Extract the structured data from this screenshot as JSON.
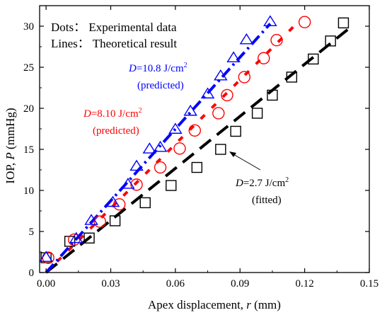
{
  "chart_data": {
    "type": "scatter",
    "xlabel": "Apex displacement, ",
    "xlabel_var": "r",
    "xlabel_unit": " (mm)",
    "ylabel": "IOP, ",
    "ylabel_var": "P",
    "ylabel_unit": " (mmHg)",
    "xlim": [
      -0.003,
      0.15
    ],
    "ylim": [
      0,
      32.5
    ],
    "xticks": [
      0.0,
      0.03,
      0.06,
      0.09,
      0.12,
      0.15
    ],
    "xtick_labels": [
      "0.00",
      "0.03",
      "0.06",
      "0.09",
      "0.12",
      "0.15"
    ],
    "yticks": [
      0,
      5,
      10,
      15,
      20,
      25,
      30
    ],
    "ytick_labels": [
      "0",
      "5",
      "10",
      "15",
      "20",
      "25",
      "30"
    ],
    "notes": [
      "Dots： Experimental data",
      "Lines： Theoretical result"
    ],
    "series": [
      {
        "kind": "experimental",
        "marker": "square",
        "color": "#000000",
        "x": [
          0.0,
          0.011,
          0.02,
          0.032,
          0.046,
          0.058,
          0.07,
          0.081,
          0.088,
          0.098,
          0.105,
          0.114,
          0.124,
          0.132,
          0.138
        ],
        "y": [
          1.8,
          3.8,
          4.2,
          6.3,
          8.5,
          10.6,
          12.8,
          15.0,
          17.2,
          19.4,
          21.6,
          23.8,
          26.0,
          28.2,
          30.4
        ]
      },
      {
        "kind": "experimental",
        "marker": "circle",
        "color": "#ff0000",
        "x": [
          0.001,
          0.013,
          0.025,
          0.034,
          0.042,
          0.053,
          0.062,
          0.069,
          0.08,
          0.084,
          0.092,
          0.101,
          0.107,
          0.12
        ],
        "y": [
          1.8,
          4.0,
          6.2,
          8.3,
          10.7,
          12.8,
          15.1,
          17.3,
          19.4,
          21.6,
          23.8,
          26.1,
          28.3,
          30.5
        ]
      },
      {
        "kind": "experimental",
        "marker": "triangle",
        "color": "#0000ff",
        "x": [
          0.0,
          0.014,
          0.021,
          0.031,
          0.038,
          0.042,
          0.048,
          0.053,
          0.06,
          0.067,
          0.075,
          0.081,
          0.087,
          0.093,
          0.104
        ],
        "y": [
          1.8,
          4.1,
          6.3,
          8.5,
          10.7,
          12.9,
          15.0,
          15.2,
          17.4,
          19.6,
          21.7,
          23.9,
          26.1,
          28.3,
          30.5
        ]
      },
      {
        "kind": "theoretical",
        "dash": "black",
        "color": "#000000",
        "x": [
          0.0,
          0.14
        ],
        "y": [
          0.0,
          29.6
        ]
      },
      {
        "kind": "theoretical",
        "dash": "red",
        "color": "#ff0000",
        "x": [
          0.0,
          0.117
        ],
        "y": [
          0.0,
          30.5
        ]
      },
      {
        "kind": "theoretical",
        "dash": "blue",
        "color": "#0000ff",
        "x": [
          0.0,
          0.104
        ],
        "y": [
          0.0,
          30.3
        ]
      }
    ],
    "annotations": [
      {
        "prefix": "D",
        "text": "=10.8 J/cm",
        "sup": "2",
        "sub": "(predicted)",
        "color": "#0000ff"
      },
      {
        "prefix": "D",
        "text": "=8.10 J/cm",
        "sup": "2",
        "sub": "(predicted)",
        "color": "#ff0000"
      },
      {
        "prefix": "D",
        "text": "=2.7 J/cm",
        "sup": "2",
        "sub": "(fitted)",
        "color": "#000000"
      }
    ]
  }
}
